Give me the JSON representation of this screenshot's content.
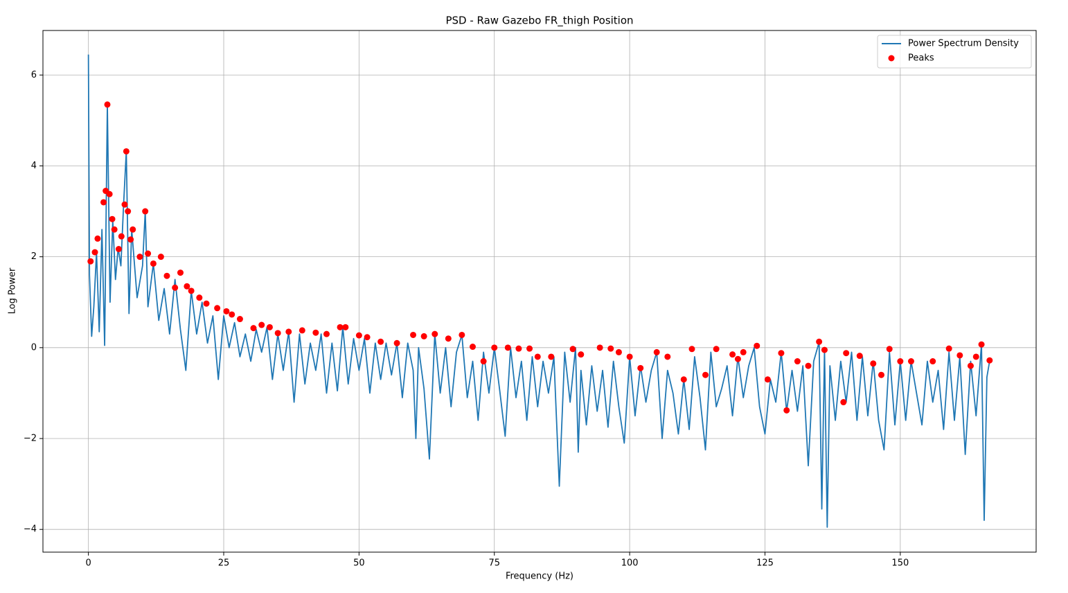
{
  "chart_data": {
    "type": "line",
    "title": "PSD - Raw Gazebo FR_thigh Position",
    "xlabel": "Frequency (Hz)",
    "ylabel": "Log Power",
    "xlim": [
      -8.4,
      175.1
    ],
    "ylim": [
      -4.5,
      6.98
    ],
    "xticks": [
      0,
      25,
      50,
      75,
      100,
      125,
      150
    ],
    "yticks": [
      {
        "value": -4,
        "label": "−4"
      },
      {
        "value": -2,
        "label": "−2"
      },
      0,
      2,
      4,
      6
    ],
    "grid": true,
    "legend": "upper right",
    "series": [
      {
        "name": "Power Spectrum Density",
        "type": "line",
        "color": "#1f77b4",
        "x": [
          0,
          0.2,
          0.6,
          1,
          1.5,
          2,
          2.5,
          3,
          3.5,
          4,
          4.5,
          5,
          5.5,
          6,
          6.5,
          7,
          7.5,
          8,
          9,
          10,
          10.5,
          11,
          12,
          13,
          14,
          15,
          16,
          17,
          18,
          19,
          20,
          21,
          22,
          23,
          24,
          25,
          26,
          27,
          28,
          29,
          30,
          31,
          32,
          33,
          34,
          35,
          36,
          37,
          38,
          39,
          40,
          41,
          42,
          43,
          44,
          45,
          46,
          47,
          48,
          49,
          50,
          51,
          52,
          53,
          54,
          55,
          56,
          57,
          58,
          59,
          60,
          60.5,
          61,
          62,
          63,
          64,
          65,
          66,
          67,
          68,
          69,
          70,
          71,
          72,
          73,
          74,
          75,
          76,
          77,
          78,
          79,
          80,
          81,
          82,
          83,
          84,
          85,
          86,
          87,
          88,
          89,
          90,
          90.5,
          91,
          92,
          93,
          94,
          95,
          96,
          97,
          98,
          99,
          100,
          101,
          102,
          103,
          104,
          105,
          106,
          107,
          108,
          109,
          110,
          111,
          112,
          113,
          114,
          115,
          116,
          117,
          118,
          119,
          120,
          121,
          122,
          123,
          124,
          125,
          126,
          127,
          128,
          129,
          130,
          131,
          132,
          133,
          134,
          135,
          135.5,
          136,
          136.5,
          137,
          138,
          139,
          140,
          141,
          142,
          143,
          144,
          145,
          146,
          147,
          148,
          149,
          150,
          151,
          152,
          153,
          154,
          155,
          156,
          157,
          158,
          159,
          160,
          161,
          162,
          163,
          164,
          165,
          165.5,
          166,
          166.5
        ],
        "values": [
          6.45,
          1.6,
          0.25,
          0.9,
          2.1,
          0.35,
          2.6,
          0.05,
          5.35,
          1.0,
          2.8,
          1.5,
          2.2,
          1.8,
          3.15,
          4.32,
          0.75,
          2.6,
          1.1,
          1.8,
          3.0,
          0.9,
          1.85,
          0.6,
          1.3,
          0.3,
          1.5,
          0.4,
          -0.5,
          1.25,
          0.3,
          1.0,
          0.1,
          0.7,
          -0.7,
          0.7,
          0.0,
          0.55,
          -0.2,
          0.3,
          -0.3,
          0.4,
          -0.1,
          0.45,
          -0.7,
          0.3,
          -0.5,
          0.35,
          -1.2,
          0.3,
          -0.8,
          0.1,
          -0.5,
          0.3,
          -1.0,
          0.1,
          -0.95,
          0.45,
          -0.8,
          0.2,
          -0.5,
          0.2,
          -1.0,
          0.1,
          -0.7,
          0.1,
          -0.6,
          0.1,
          -1.1,
          0.1,
          -0.5,
          -2.0,
          0.0,
          -0.9,
          -2.45,
          0.3,
          -1.0,
          0.0,
          -1.3,
          -0.1,
          0.28,
          -1.1,
          -0.3,
          -1.6,
          -0.1,
          -1.0,
          0.0,
          -0.95,
          -1.95,
          0.0,
          -1.1,
          -0.3,
          -1.6,
          -0.2,
          -1.3,
          -0.3,
          -1.0,
          -0.2,
          -3.05,
          -0.1,
          -1.2,
          0.0,
          -2.3,
          -0.5,
          -1.7,
          -0.4,
          -1.4,
          -0.5,
          -1.75,
          -0.3,
          -1.3,
          -2.1,
          -0.2,
          -1.5,
          -0.4,
          -1.2,
          -0.5,
          -0.1,
          -2.0,
          -0.5,
          -1.0,
          -1.9,
          -0.7,
          -1.8,
          -0.2,
          -1.1,
          -2.25,
          -0.1,
          -1.3,
          -0.9,
          -0.4,
          -1.5,
          -0.2,
          -1.1,
          -0.4,
          0.0,
          -1.3,
          -1.9,
          -0.7,
          -1.2,
          -0.1,
          -1.4,
          -0.5,
          -1.4,
          -0.4,
          -2.6,
          -0.3,
          0.12,
          -3.55,
          -0.05,
          -3.95,
          -0.4,
          -1.6,
          -0.3,
          -1.2,
          -0.1,
          -1.6,
          -0.2,
          -1.5,
          -0.3,
          -1.6,
          -2.25,
          -0.1,
          -1.7,
          -0.3,
          -1.6,
          -0.3,
          -1.0,
          -1.7,
          -0.3,
          -1.2,
          -0.5,
          -1.8,
          -0.1,
          -1.6,
          -0.2,
          -2.35,
          -0.3,
          -1.5,
          0.07,
          -3.8,
          -0.65,
          -0.3
        ]
      },
      {
        "name": "Peaks",
        "type": "scatter",
        "color": "#ff0000",
        "x": [
          0.4,
          1.2,
          1.7,
          2.8,
          3.2,
          3.5,
          3.9,
          4.4,
          4.8,
          5.6,
          6.1,
          6.7,
          7,
          7.3,
          7.8,
          8.2,
          9.5,
          10.5,
          11,
          12,
          13.4,
          14.5,
          16,
          17,
          18.2,
          19,
          20.5,
          21.8,
          23.8,
          25.5,
          26.5,
          28,
          30.5,
          32,
          33.5,
          35,
          37,
          39.5,
          42,
          44,
          46.5,
          47.5,
          50,
          51.5,
          54,
          57,
          60,
          62,
          64,
          66.5,
          69,
          71,
          75,
          77.5,
          79.5,
          81.5,
          85.5,
          89.5,
          91,
          94.5,
          96.5,
          98,
          100,
          105,
          107,
          111.5,
          116,
          120,
          121,
          123.5,
          128,
          129,
          131,
          135,
          136,
          139.5,
          140,
          142.5,
          148,
          150,
          152,
          156,
          159,
          161,
          164,
          165,
          166.5,
          163,
          145,
          146.5,
          119,
          102,
          110,
          114,
          125.5,
          133,
          83,
          73
        ],
        "values": [
          1.9,
          2.1,
          2.4,
          3.2,
          3.45,
          5.35,
          3.38,
          2.83,
          2.6,
          2.17,
          2.45,
          3.15,
          4.32,
          3.0,
          2.38,
          2.6,
          2.0,
          3.0,
          2.07,
          1.85,
          2.0,
          1.58,
          1.32,
          1.65,
          1.35,
          1.25,
          1.1,
          0.97,
          0.87,
          0.8,
          0.73,
          0.63,
          0.43,
          0.5,
          0.45,
          0.32,
          0.35,
          0.38,
          0.33,
          0.3,
          0.45,
          0.45,
          0.27,
          0.23,
          0.13,
          0.1,
          0.28,
          0.25,
          0.3,
          0.2,
          0.28,
          0.02,
          0.0,
          0.0,
          -0.02,
          -0.02,
          -0.2,
          -0.03,
          -0.15,
          0.0,
          -0.02,
          -0.1,
          -0.2,
          -0.1,
          -0.2,
          -0.03,
          -0.03,
          -0.25,
          -0.1,
          0.04,
          -0.12,
          -1.38,
          -0.3,
          0.13,
          -0.05,
          -1.2,
          -0.12,
          -0.18,
          -0.03,
          -0.3,
          -0.3,
          -0.3,
          -0.02,
          -0.17,
          -0.2,
          0.07,
          -0.28,
          -0.4,
          -0.35,
          -0.6,
          -0.15,
          -0.45,
          -0.7,
          -0.6,
          -0.7,
          -0.4,
          -0.2,
          -0.3
        ]
      }
    ]
  }
}
